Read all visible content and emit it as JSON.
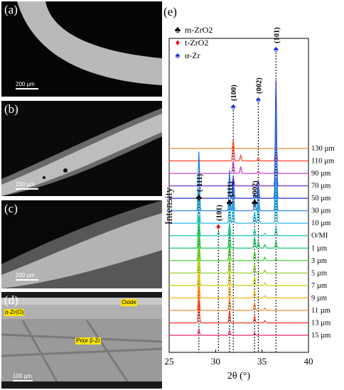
{
  "panels": [
    {
      "label": "(a)",
      "scale": "200 µm"
    },
    {
      "label": "(b)",
      "scale": "200 µm"
    },
    {
      "label": "(c)",
      "scale": "200 µm"
    },
    {
      "label": "(d)",
      "scale": "100 µm",
      "tags": {
        "oxide": "Oxide",
        "alpha": "α-Zr(O)",
        "prior": "Prior β-Zr"
      }
    }
  ],
  "chart_data": {
    "type": "line",
    "panel_label": "(e)",
    "xlabel": "2θ (°)",
    "ylabel": "Intensity",
    "xlim": [
      25,
      40
    ],
    "xticks": [
      25,
      30,
      35,
      40
    ],
    "legend": {
      "position": "top-left",
      "entries": [
        {
          "label": "m-ZrO2",
          "symbol": "club",
          "color": "#000000"
        },
        {
          "label": "t-ZrO2",
          "symbol": "diamond",
          "color": "#e8101a"
        },
        {
          "label": "α-Zr",
          "symbol": "spade",
          "color": "#1f2fd6"
        }
      ]
    },
    "peaks": [
      {
        "label": "(-111)",
        "x": 28.2,
        "phase": "m-ZrO2"
      },
      {
        "label": "(101)",
        "x": 30.3,
        "phase": "t-ZrO2"
      },
      {
        "label": "(111)",
        "x": 31.5,
        "phase": "m-ZrO2"
      },
      {
        "label": "(100)",
        "x": 31.9,
        "phase": "α-Zr"
      },
      {
        "label": "(002)",
        "x": 34.2,
        "phase": "m-ZrO2"
      },
      {
        "label": "(002)",
        "x": 34.6,
        "phase": "α-Zr"
      },
      {
        "label": "(101)",
        "x": 36.5,
        "phase": "α-Zr"
      }
    ],
    "series": [
      {
        "name": "130 µm",
        "color": "#f08a3c",
        "h": {
          "31.9": 0.12,
          "34.6": 0.04,
          "36.5": 0.08
        }
      },
      {
        "name": "110 µm",
        "color": "#ff3b2a",
        "h": {
          "31.9": 0.95,
          "32.7": 0.25,
          "34.6": 0.15,
          "36.5": 1.4
        }
      },
      {
        "name": "90 µm",
        "color": "#cc2fc0",
        "h": {
          "31.9": 0.55,
          "32.7": 0.3,
          "34.6": 0.1,
          "36.5": 1.6
        }
      },
      {
        "name": "70 µm",
        "color": "#7a35c8",
        "h": {
          "31.9": 0.4,
          "34.6": 0.2,
          "36.5": 4.1
        }
      },
      {
        "name": "50 µm",
        "color": "#2a2fd2",
        "h": {
          "28.2": 0.2,
          "31.5": 0.3,
          "31.9": 0.8,
          "34.2": 0.2,
          "34.6": 0.6,
          "36.5": 5.2
        }
      },
      {
        "name": "30 µm",
        "color": "#1e78e0",
        "h": {
          "28.2": 2.6,
          "31.5": 1.8,
          "31.9": 1.0,
          "34.2": 0.6,
          "34.6": 1.0,
          "36.5": 4.6
        }
      },
      {
        "name": "10 µm",
        "color": "#18b4e6",
        "h": {
          "28.2": 1.5,
          "31.5": 1.0,
          "31.9": 0.9,
          "34.2": 0.5,
          "34.6": 0.9,
          "36.5": 2.0
        }
      },
      {
        "name": "O/MI",
        "color": "#17c9b0",
        "h": {
          "28.2": 0.9,
          "30.3": 0.15,
          "31.5": 0.6,
          "34.2": 0.3,
          "35.3": 0.1,
          "36.5": 0.4
        }
      },
      {
        "name": "1 µm",
        "color": "#16c46a",
        "h": {
          "28.2": 1.4,
          "31.5": 0.9,
          "34.2": 0.5,
          "34.6": 0.3,
          "35.3": 0.15,
          "36.5": 0.3
        }
      },
      {
        "name": "3 µm",
        "color": "#39cc28",
        "h": {
          "28.2": 1.3,
          "31.5": 0.8,
          "34.2": 0.4,
          "35.3": 0.15,
          "36.5": 0.1
        }
      },
      {
        "name": "5 µm",
        "color": "#8acb1f",
        "h": {
          "28.2": 1.2,
          "31.5": 0.7,
          "34.2": 0.4,
          "35.3": 0.12
        }
      },
      {
        "name": "7 µm",
        "color": "#c9cc12",
        "h": {
          "28.2": 1.2,
          "31.5": 0.7,
          "34.2": 0.4,
          "35.3": 0.12
        }
      },
      {
        "name": "9 µm",
        "color": "#f2b71a",
        "h": {
          "28.2": 1.1,
          "31.5": 0.65,
          "34.2": 0.35,
          "35.3": 0.1
        }
      },
      {
        "name": "11 µm",
        "color": "#f57d1e",
        "h": {
          "28.2": 1.1,
          "31.5": 0.6,
          "34.2": 0.35,
          "35.3": 0.1
        }
      },
      {
        "name": "13 µm",
        "color": "#ef3324",
        "h": {
          "28.2": 1.0,
          "31.5": 0.55,
          "34.2": 0.3,
          "35.3": 0.1
        }
      },
      {
        "name": "15 µm",
        "color": "#e6246e",
        "h": {
          "28.2": 0.3,
          "31.5": 0.2,
          "34.2": 0.1
        }
      }
    ]
  }
}
